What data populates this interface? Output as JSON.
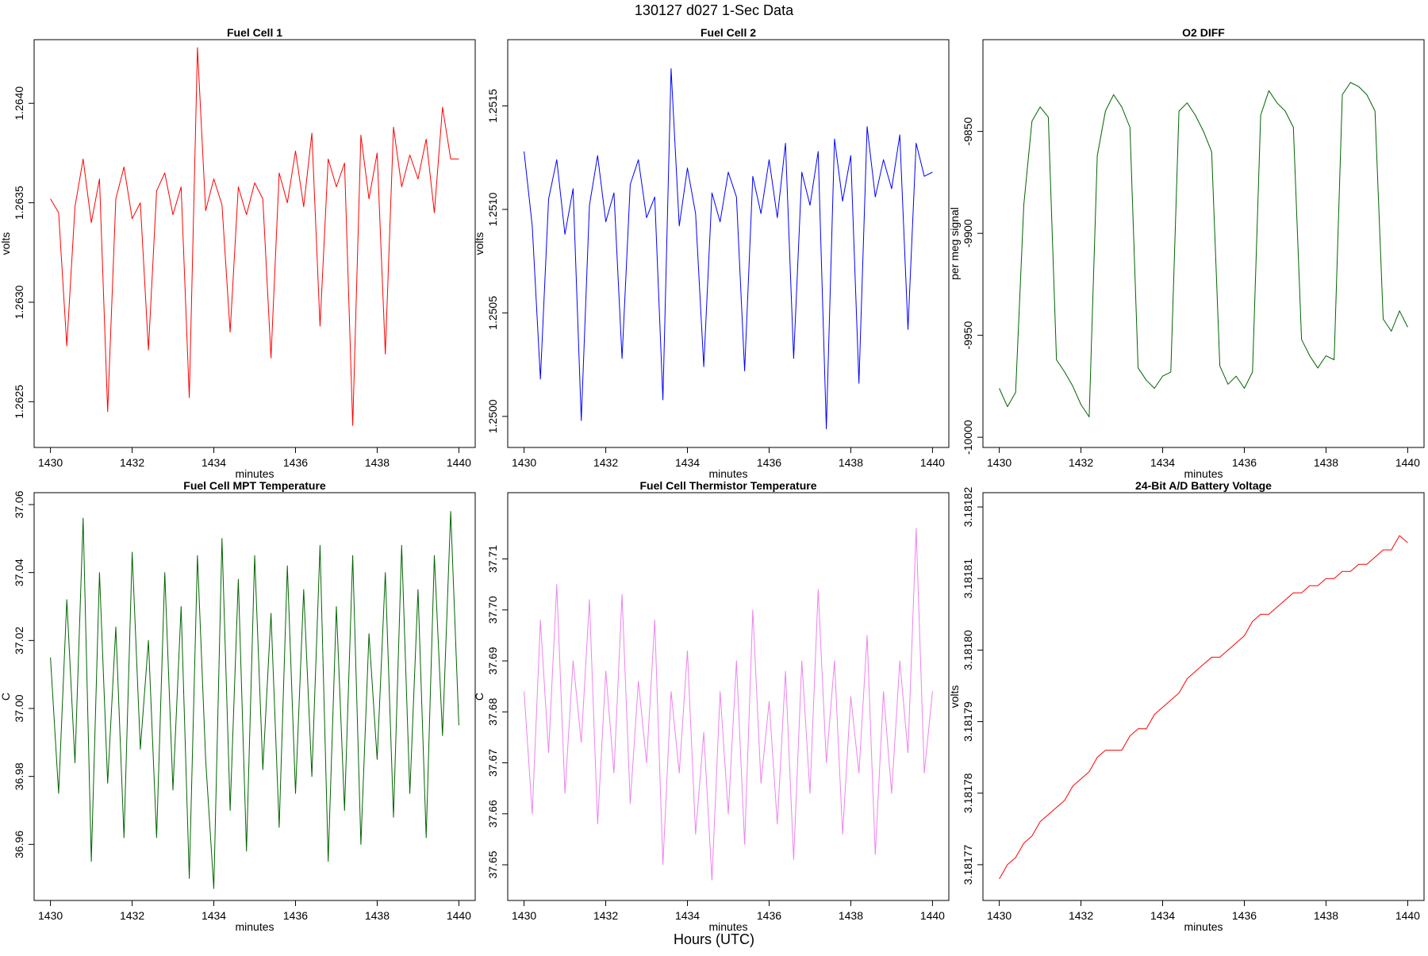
{
  "figure": {
    "title": "130127   d027   1-Sec Data",
    "xlabel": "Hours (UTC)"
  },
  "chart_data": [
    {
      "type": "line",
      "title": "Fuel Cell 1",
      "xlabel": "minutes",
      "ylabel": "volts",
      "xlim": [
        1429.6,
        1440.4
      ],
      "ylim": [
        1.26227,
        1.26432
      ],
      "xticks": [
        1430,
        1432,
        1434,
        1436,
        1438,
        1440
      ],
      "xtick_labels": [
        "1430",
        "1432",
        "1434",
        "1436",
        "1438",
        "1440"
      ],
      "yticks": [
        1.2625,
        1.263,
        1.2635,
        1.264
      ],
      "ytick_labels": [
        "1.2625",
        "1.2630",
        "1.2635",
        "1.2640"
      ],
      "grid": false,
      "series": [
        {
          "color": "#ff0000",
          "x": [
            1430.0,
            1430.2,
            1430.4,
            1430.6,
            1430.8,
            1431.0,
            1431.2,
            1431.4,
            1431.6,
            1431.8,
            1432.0,
            1432.2,
            1432.4,
            1432.6,
            1432.8,
            1433.0,
            1433.2,
            1433.4,
            1433.6,
            1433.8,
            1434.0,
            1434.2,
            1434.4,
            1434.6,
            1434.8,
            1435.0,
            1435.2,
            1435.4,
            1435.6,
            1435.8,
            1436.0,
            1436.2,
            1436.4,
            1436.6,
            1436.8,
            1437.0,
            1437.2,
            1437.4,
            1437.6,
            1437.8,
            1438.0,
            1438.2,
            1438.4,
            1438.6,
            1438.8,
            1439.0,
            1439.2,
            1439.4,
            1439.6,
            1439.8,
            1440.0
          ],
          "y": [
            1.26352,
            1.26345,
            1.26278,
            1.26348,
            1.26372,
            1.2634,
            1.26362,
            1.26245,
            1.26352,
            1.26368,
            1.26342,
            1.2635,
            1.26276,
            1.26356,
            1.26365,
            1.26344,
            1.26358,
            1.26252,
            1.26428,
            1.26346,
            1.26362,
            1.26349,
            1.26285,
            1.26358,
            1.26344,
            1.2636,
            1.26352,
            1.26272,
            1.26365,
            1.2635,
            1.26376,
            1.26348,
            1.26385,
            1.26288,
            1.26372,
            1.26358,
            1.2637,
            1.26238,
            1.26384,
            1.26352,
            1.26375,
            1.26274,
            1.26388,
            1.26358,
            1.26374,
            1.26362,
            1.26382,
            1.26345,
            1.26398,
            1.26372,
            1.26372
          ]
        }
      ]
    },
    {
      "type": "line",
      "title": "Fuel Cell 2",
      "xlabel": "minutes",
      "ylabel": "volts",
      "xlim": [
        1429.6,
        1440.4
      ],
      "ylim": [
        1.24985,
        1.25182
      ],
      "xticks": [
        1430,
        1432,
        1434,
        1436,
        1438,
        1440
      ],
      "xtick_labels": [
        "1430",
        "1432",
        "1434",
        "1436",
        "1438",
        "1440"
      ],
      "yticks": [
        1.25,
        1.2505,
        1.251,
        1.2515
      ],
      "ytick_labels": [
        "1.2500",
        "1.2505",
        "1.2510",
        "1.2515"
      ],
      "grid": false,
      "series": [
        {
          "color": "#0000ff",
          "x": [
            1430.0,
            1430.2,
            1430.4,
            1430.6,
            1430.8,
            1431.0,
            1431.2,
            1431.4,
            1431.6,
            1431.8,
            1432.0,
            1432.2,
            1432.4,
            1432.6,
            1432.8,
            1433.0,
            1433.2,
            1433.4,
            1433.6,
            1433.8,
            1434.0,
            1434.2,
            1434.4,
            1434.6,
            1434.8,
            1435.0,
            1435.2,
            1435.4,
            1435.6,
            1435.8,
            1436.0,
            1436.2,
            1436.4,
            1436.6,
            1436.8,
            1437.0,
            1437.2,
            1437.4,
            1437.6,
            1437.8,
            1438.0,
            1438.2,
            1438.4,
            1438.6,
            1438.8,
            1439.0,
            1439.2,
            1439.4,
            1439.6,
            1439.8,
            1440.0
          ],
          "y": [
            1.25128,
            1.25092,
            1.25018,
            1.25105,
            1.25124,
            1.25088,
            1.2511,
            1.24998,
            1.25102,
            1.25126,
            1.25094,
            1.25108,
            1.25028,
            1.25112,
            1.25124,
            1.25096,
            1.25106,
            1.25008,
            1.25168,
            1.25092,
            1.2512,
            1.25098,
            1.25024,
            1.25108,
            1.25094,
            1.25118,
            1.25106,
            1.25022,
            1.25116,
            1.25098,
            1.25124,
            1.25096,
            1.25132,
            1.25028,
            1.25118,
            1.25102,
            1.25128,
            1.24994,
            1.25134,
            1.25104,
            1.25126,
            1.25016,
            1.2514,
            1.25106,
            1.25124,
            1.2511,
            1.25136,
            1.25042,
            1.25132,
            1.25116,
            1.25118
          ]
        }
      ]
    },
    {
      "type": "line",
      "title": "O2 DIFF",
      "xlabel": "minutes",
      "ylabel": "per meg signal",
      "xlim": [
        1429.6,
        1440.4
      ],
      "ylim": [
        -10005,
        -9805
      ],
      "xticks": [
        1430,
        1432,
        1434,
        1436,
        1438,
        1440
      ],
      "xtick_labels": [
        "1430",
        "1432",
        "1434",
        "1436",
        "1438",
        "1440"
      ],
      "yticks": [
        -10000,
        -9950,
        -9900,
        -9850
      ],
      "ytick_labels": [
        "-10000",
        "-9950",
        "-9900",
        "-9850"
      ],
      "grid": false,
      "series": [
        {
          "color": "#006400",
          "x": [
            1430.0,
            1430.2,
            1430.4,
            1430.6,
            1430.8,
            1431.0,
            1431.2,
            1431.4,
            1431.6,
            1431.8,
            1432.0,
            1432.2,
            1432.4,
            1432.6,
            1432.8,
            1433.0,
            1433.2,
            1433.4,
            1433.6,
            1433.8,
            1434.0,
            1434.2,
            1434.4,
            1434.6,
            1434.8,
            1435.0,
            1435.2,
            1435.4,
            1435.6,
            1435.8,
            1436.0,
            1436.2,
            1436.4,
            1436.6,
            1436.8,
            1437.0,
            1437.2,
            1437.4,
            1437.6,
            1437.8,
            1438.0,
            1438.2,
            1438.4,
            1438.6,
            1438.8,
            1439.0,
            1439.2,
            1439.4,
            1439.6,
            1439.8,
            1440.0
          ],
          "y": [
            -9976,
            -9985,
            -9978,
            -9886,
            -9845,
            -9838,
            -9843,
            -9962,
            -9968,
            -9975,
            -9984,
            -9990,
            -9862,
            -9840,
            -9832,
            -9838,
            -9848,
            -9966,
            -9972,
            -9976,
            -9970,
            -9968,
            -9840,
            -9836,
            -9842,
            -9850,
            -9860,
            -9965,
            -9974,
            -9970,
            -9976,
            -9968,
            -9842,
            -9830,
            -9836,
            -9840,
            -9848,
            -9952,
            -9960,
            -9966,
            -9960,
            -9962,
            -9832,
            -9826,
            -9828,
            -9832,
            -9840,
            -9942,
            -9948,
            -9938,
            -9946
          ]
        }
      ]
    },
    {
      "type": "line",
      "title": "Fuel Cell MPT Temperature",
      "xlabel": "minutes",
      "ylabel": "C",
      "xlim": [
        1429.6,
        1440.4
      ],
      "ylim": [
        36.9435,
        37.0635
      ],
      "xticks": [
        1430,
        1432,
        1434,
        1436,
        1438,
        1440
      ],
      "xtick_labels": [
        "1430",
        "1432",
        "1434",
        "1436",
        "1438",
        "1440"
      ],
      "yticks": [
        36.96,
        36.98,
        37.0,
        37.02,
        37.04,
        37.06
      ],
      "ytick_labels": [
        "36.96",
        "36.98",
        "37.00",
        "37.02",
        "37.04",
        "37.06"
      ],
      "grid": false,
      "series": [
        {
          "color": "#006400",
          "x": [
            1430.0,
            1430.2,
            1430.4,
            1430.6,
            1430.8,
            1431.0,
            1431.2,
            1431.4,
            1431.6,
            1431.8,
            1432.0,
            1432.2,
            1432.4,
            1432.6,
            1432.8,
            1433.0,
            1433.2,
            1433.4,
            1433.6,
            1433.8,
            1434.0,
            1434.2,
            1434.4,
            1434.6,
            1434.8,
            1435.0,
            1435.2,
            1435.4,
            1435.6,
            1435.8,
            1436.0,
            1436.2,
            1436.4,
            1436.6,
            1436.8,
            1437.0,
            1437.2,
            1437.4,
            1437.6,
            1437.8,
            1438.0,
            1438.2,
            1438.4,
            1438.6,
            1438.8,
            1439.0,
            1439.2,
            1439.4,
            1439.6,
            1439.8,
            1440.0
          ],
          "y": [
            37.015,
            36.975,
            37.032,
            36.984,
            37.056,
            36.955,
            37.04,
            36.978,
            37.024,
            36.962,
            37.046,
            36.988,
            37.02,
            36.962,
            37.04,
            36.976,
            37.03,
            36.95,
            37.045,
            36.985,
            36.947,
            37.05,
            36.97,
            37.038,
            36.958,
            37.045,
            36.982,
            37.028,
            36.965,
            37.042,
            36.975,
            37.035,
            36.98,
            37.048,
            36.955,
            37.03,
            36.97,
            37.045,
            36.96,
            37.022,
            36.985,
            37.04,
            36.968,
            37.048,
            36.975,
            37.035,
            36.962,
            37.045,
            36.992,
            37.058,
            36.995
          ]
        }
      ]
    },
    {
      "type": "line",
      "title": "Fuel Cell Thermistor Temperature",
      "xlabel": "minutes",
      "ylabel": "C",
      "xlim": [
        1429.6,
        1440.4
      ],
      "ylim": [
        37.643,
        37.723
      ],
      "xticks": [
        1430,
        1432,
        1434,
        1436,
        1438,
        1440
      ],
      "xtick_labels": [
        "1430",
        "1432",
        "1434",
        "1436",
        "1438",
        "1440"
      ],
      "yticks": [
        37.65,
        37.66,
        37.67,
        37.68,
        37.69,
        37.7,
        37.71
      ],
      "ytick_labels": [
        "37.65",
        "37.66",
        "37.67",
        "37.68",
        "37.69",
        "37.70",
        "37.71"
      ],
      "grid": false,
      "series": [
        {
          "color": "#ee82ee",
          "x": [
            1430.0,
            1430.2,
            1430.4,
            1430.6,
            1430.8,
            1431.0,
            1431.2,
            1431.4,
            1431.6,
            1431.8,
            1432.0,
            1432.2,
            1432.4,
            1432.6,
            1432.8,
            1433.0,
            1433.2,
            1433.4,
            1433.6,
            1433.8,
            1434.0,
            1434.2,
            1434.4,
            1434.6,
            1434.8,
            1435.0,
            1435.2,
            1435.4,
            1435.6,
            1435.8,
            1436.0,
            1436.2,
            1436.4,
            1436.6,
            1436.8,
            1437.0,
            1437.2,
            1437.4,
            1437.6,
            1437.8,
            1438.0,
            1438.2,
            1438.4,
            1438.6,
            1438.8,
            1439.0,
            1439.2,
            1439.4,
            1439.6,
            1439.8,
            1440.0
          ],
          "y": [
            37.684,
            37.66,
            37.698,
            37.672,
            37.705,
            37.664,
            37.69,
            37.674,
            37.702,
            37.658,
            37.688,
            37.668,
            37.703,
            37.662,
            37.686,
            37.67,
            37.698,
            37.65,
            37.684,
            37.668,
            37.692,
            37.656,
            37.676,
            37.647,
            37.684,
            37.66,
            37.69,
            37.654,
            37.7,
            37.666,
            37.682,
            37.658,
            37.688,
            37.651,
            37.69,
            37.664,
            37.704,
            37.67,
            37.69,
            37.656,
            37.683,
            37.668,
            37.695,
            37.652,
            37.684,
            37.664,
            37.69,
            37.672,
            37.716,
            37.668,
            37.684
          ]
        }
      ]
    },
    {
      "type": "line",
      "title": "24-Bit A/D Battery Voltage",
      "xlabel": "minutes",
      "ylabel": "volts",
      "xlim": [
        1429.6,
        1440.4
      ],
      "ylim": [
        3.181765,
        3.181822
      ],
      "xticks": [
        1430,
        1432,
        1434,
        1436,
        1438,
        1440
      ],
      "xtick_labels": [
        "1430",
        "1432",
        "1434",
        "1436",
        "1438",
        "1440"
      ],
      "yticks": [
        3.18177,
        3.18178,
        3.18179,
        3.1818,
        3.18181,
        3.18182
      ],
      "ytick_labels": [
        "3.18177",
        "3.18178",
        "3.18179",
        "3.18180",
        "3.18181",
        "3.18182"
      ],
      "grid": false,
      "series": [
        {
          "color": "#ff0000",
          "x": [
            1430.0,
            1430.2,
            1430.4,
            1430.6,
            1430.8,
            1431.0,
            1431.2,
            1431.4,
            1431.6,
            1431.8,
            1432.0,
            1432.2,
            1432.4,
            1432.6,
            1432.8,
            1433.0,
            1433.2,
            1433.4,
            1433.6,
            1433.8,
            1434.0,
            1434.2,
            1434.4,
            1434.6,
            1434.8,
            1435.0,
            1435.2,
            1435.4,
            1435.6,
            1435.8,
            1436.0,
            1436.2,
            1436.4,
            1436.6,
            1436.8,
            1437.0,
            1437.2,
            1437.4,
            1437.6,
            1437.8,
            1438.0,
            1438.2,
            1438.4,
            1438.6,
            1438.8,
            1439.0,
            1439.2,
            1439.4,
            1439.6,
            1439.8,
            1440.0
          ],
          "y": [
            3.181768,
            3.18177,
            3.181771,
            3.181773,
            3.181774,
            3.181776,
            3.181777,
            3.181778,
            3.181779,
            3.181781,
            3.181782,
            3.181783,
            3.181785,
            3.181786,
            3.181786,
            3.181786,
            3.181788,
            3.181789,
            3.181789,
            3.181791,
            3.181792,
            3.181793,
            3.181794,
            3.181796,
            3.181797,
            3.181798,
            3.181799,
            3.181799,
            3.1818,
            3.181801,
            3.181802,
            3.181804,
            3.181805,
            3.181805,
            3.181806,
            3.181807,
            3.181808,
            3.181808,
            3.181809,
            3.181809,
            3.18181,
            3.18181,
            3.181811,
            3.181811,
            3.181812,
            3.181812,
            3.181813,
            3.181814,
            3.181814,
            3.181816,
            3.181815
          ]
        }
      ]
    }
  ]
}
